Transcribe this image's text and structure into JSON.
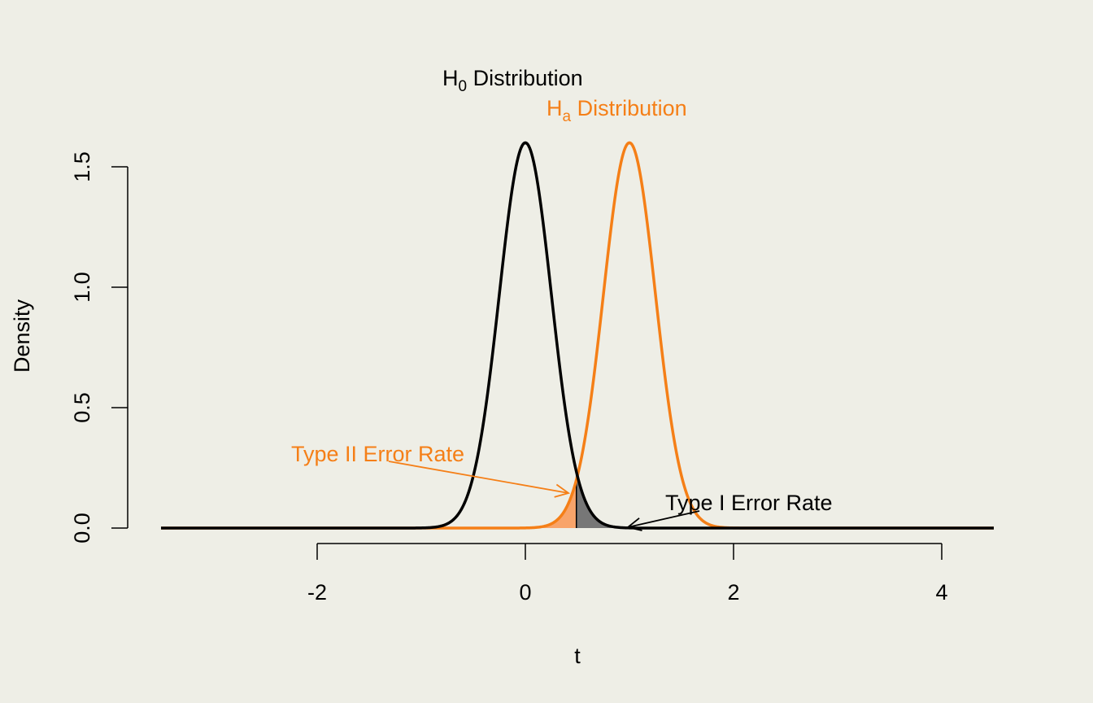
{
  "chart_data": {
    "type": "line",
    "xlabel": "t",
    "ylabel": "Density",
    "xlim": [
      -3.5,
      4.5
    ],
    "ylim": [
      0,
      1.6
    ],
    "x_ticks": [
      -2,
      0,
      2,
      4
    ],
    "x_tick_labels": [
      "-2",
      "0",
      "2",
      "4"
    ],
    "y_ticks": [
      0,
      0.5,
      1.0,
      1.5
    ],
    "y_tick_labels": [
      "0.0",
      "0.5",
      "1.0",
      "1.5"
    ],
    "critical_value": 0.49,
    "series": [
      {
        "key": "h0",
        "label_main": "H",
        "label_sub": "0",
        "label_rest": " Distribution",
        "mean": 0,
        "sd": 0.25,
        "peak": 1.6,
        "color": "#000000"
      },
      {
        "key": "ha",
        "label_main": "H",
        "label_sub": "a",
        "label_rest": " Distribution",
        "mean": 1,
        "sd": 0.25,
        "peak": 1.6,
        "color": "#f57f17"
      }
    ],
    "annotations": {
      "type2": {
        "text": "Type II Error Rate",
        "color": "#f57f17"
      },
      "type1": {
        "text": "Type I Error Rate",
        "color": "#000000"
      }
    },
    "fill_colors": {
      "type2": "#f8a46a",
      "type1": "#777777"
    }
  }
}
